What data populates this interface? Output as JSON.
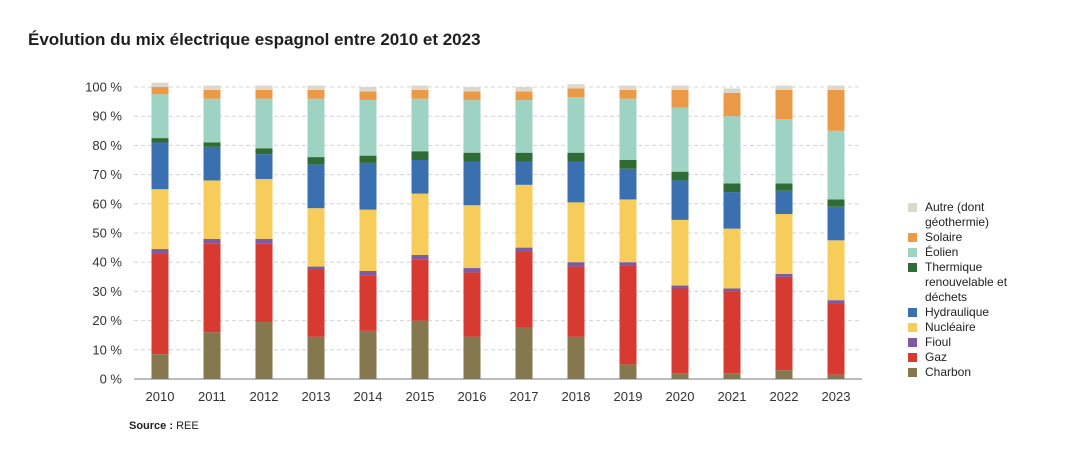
{
  "chart_data": {
    "type": "bar",
    "stacked": true,
    "title": "Évolution du mix électrique espagnol entre 2010 et 2023",
    "source_label": "Source :",
    "source_value": "REE",
    "xlabel": "",
    "ylabel": "",
    "ylim": [
      0,
      100
    ],
    "y_ticks": [
      "0 %",
      "10 %",
      "20 %",
      "30 %",
      "40 %",
      "50 %",
      "60 %",
      "70 %",
      "80 %",
      "90 %",
      "100 %"
    ],
    "grid": true,
    "legend_position": "right",
    "categories": [
      "2010",
      "2011",
      "2012",
      "2013",
      "2014",
      "2015",
      "2016",
      "2017",
      "2018",
      "2019",
      "2020",
      "2021",
      "2022",
      "2023"
    ],
    "series": [
      {
        "name": "Charbon",
        "color": "#85784e",
        "values": [
          8.5,
          16,
          19.5,
          14.5,
          16.5,
          20,
          14.5,
          17.5,
          14.5,
          5,
          2,
          2,
          3,
          1.5
        ]
      },
      {
        "name": "Gaz",
        "color": "#d63a30",
        "values": [
          34.5,
          30.5,
          27,
          23,
          19,
          21,
          22,
          26,
          24,
          34,
          29,
          28,
          32,
          24.5
        ]
      },
      {
        "name": "Fioul",
        "color": "#7e5aa0",
        "values": [
          1.5,
          1.5,
          1.5,
          1,
          1.5,
          1.5,
          1.5,
          1.5,
          1.5,
          1,
          1,
          1,
          1,
          1
        ]
      },
      {
        "name": "Nucléaire",
        "color": "#f6cc5a",
        "values": [
          20.5,
          20,
          20.5,
          20,
          21,
          21,
          21.5,
          21.5,
          20.5,
          21.5,
          22.5,
          20.5,
          20.5,
          20.5
        ]
      },
      {
        "name": "Hydraulique",
        "color": "#3a6fb0",
        "values": [
          16,
          11.5,
          8.5,
          15,
          16,
          11.5,
          15,
          8,
          14,
          10.5,
          13.5,
          12.5,
          8,
          11.5
        ]
      },
      {
        "name": "Thermique renouvelable et déchets",
        "color": "#2f6b35",
        "values": [
          1.5,
          1.5,
          2,
          2.5,
          2.5,
          3,
          3,
          3,
          3,
          3,
          3,
          3,
          2.5,
          2.5
        ]
      },
      {
        "name": "Éolien",
        "color": "#9ed3c3",
        "values": [
          15,
          15,
          17,
          20,
          19,
          18,
          18,
          18,
          19,
          21,
          22,
          23,
          22,
          23.5
        ]
      },
      {
        "name": "Solaire",
        "color": "#eb9a48",
        "values": [
          2.5,
          3,
          3,
          3,
          3,
          3,
          3,
          3,
          3,
          3,
          6,
          8,
          10,
          14
        ]
      },
      {
        "name": "Autre (dont géothermie)",
        "color": "#dcd8cc",
        "values": [
          1.5,
          1.5,
          1.5,
          1.5,
          1.5,
          1.5,
          1.5,
          1.5,
          1.5,
          1.5,
          1.5,
          1.5,
          1.5,
          1.5
        ]
      }
    ],
    "legend_order": [
      8,
      7,
      6,
      5,
      4,
      3,
      2,
      1,
      0
    ]
  }
}
